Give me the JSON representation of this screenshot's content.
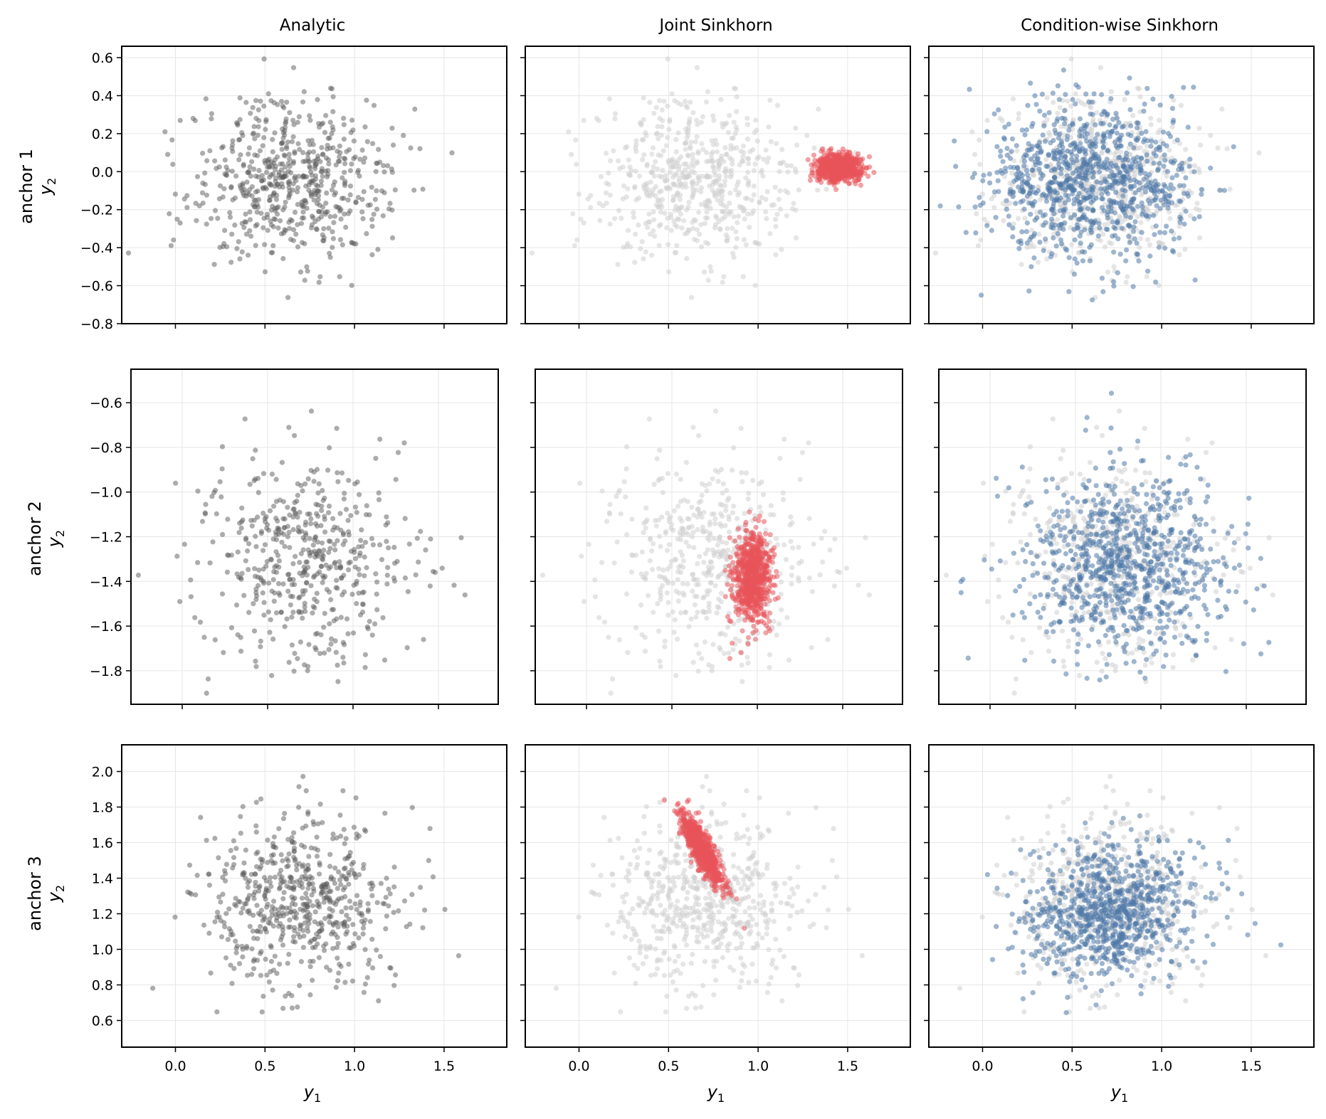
{
  "figure": {
    "columns": [
      "Analytic",
      "Joint Sinkhorn",
      "Condition-wise Sinkhorn"
    ],
    "rows": [
      "anchor 1",
      "anchor 2",
      "anchor 3"
    ],
    "xlabel_main": "y",
    "xlabel_sub": "1",
    "ylabel_main": "y",
    "ylabel_sub": "2"
  },
  "colors": {
    "analytic": "#5a5a5a",
    "reference": "#cfcfcf",
    "joint": "#e8545a",
    "conditionwise": "#4e79a7",
    "grid": "#e6e6e6"
  },
  "chart_data": [
    {
      "type": "scatter",
      "row": "anchor 1",
      "column": "Analytic",
      "ylim": [
        -0.8,
        0.66
      ],
      "yticks": [
        -0.8,
        -0.6,
        -0.4,
        -0.2,
        0.0,
        0.2,
        0.4,
        0.6
      ],
      "xlim": [
        -0.3,
        1.85
      ],
      "xticks": [
        0.0,
        0.5,
        1.0,
        1.5
      ],
      "series": [
        {
          "role": "analytic",
          "n": 600,
          "center": [
            0.65,
            -0.04
          ],
          "spread": [
            0.28,
            0.21
          ],
          "corr": 0
        }
      ]
    },
    {
      "type": "scatter",
      "row": "anchor 1",
      "column": "Joint Sinkhorn",
      "ylim": [
        -0.8,
        0.66
      ],
      "yticks": [
        -0.8,
        -0.6,
        -0.4,
        -0.2,
        0.0,
        0.2,
        0.4,
        0.6
      ],
      "xlim": [
        -0.3,
        1.85
      ],
      "xticks": [
        0.0,
        0.5,
        1.0,
        1.5
      ],
      "series": [
        {
          "role": "reference",
          "n": 600,
          "center": [
            0.65,
            -0.04
          ],
          "spread": [
            0.28,
            0.21
          ],
          "corr": 0
        },
        {
          "role": "joint",
          "n": 700,
          "center": [
            1.45,
            0.02
          ],
          "spread": [
            0.06,
            0.035
          ],
          "corr": 0
        }
      ]
    },
    {
      "type": "scatter",
      "row": "anchor 1",
      "column": "Condition-wise Sinkhorn",
      "ylim": [
        -0.8,
        0.66
      ],
      "yticks": [
        -0.8,
        -0.6,
        -0.4,
        -0.2,
        0.0,
        0.2,
        0.4,
        0.6
      ],
      "xlim": [
        -0.3,
        1.85
      ],
      "xticks": [
        0.0,
        0.5,
        1.0,
        1.5
      ],
      "series": [
        {
          "role": "reference",
          "n": 600,
          "center": [
            0.65,
            -0.04
          ],
          "spread": [
            0.28,
            0.21
          ],
          "corr": 0
        },
        {
          "role": "conditionwise",
          "n": 900,
          "center": [
            0.6,
            -0.05
          ],
          "spread": [
            0.28,
            0.2
          ],
          "corr": 0
        }
      ]
    },
    {
      "type": "scatter",
      "row": "anchor 2",
      "column": "Analytic",
      "ylim": [
        -1.95,
        -0.45
      ],
      "yticks": [
        -1.8,
        -1.6,
        -1.4,
        -1.2,
        -1.0,
        -0.8,
        -0.6
      ],
      "xlim": [
        -0.3,
        1.85
      ],
      "xticks": [
        0.0,
        0.5,
        1.0,
        1.5
      ],
      "series": [
        {
          "role": "analytic",
          "n": 500,
          "center": [
            0.75,
            -1.3
          ],
          "spread": [
            0.3,
            0.23
          ],
          "corr": 0
        }
      ]
    },
    {
      "type": "scatter",
      "row": "anchor 2",
      "column": "Joint Sinkhorn",
      "ylim": [
        -1.95,
        -0.45
      ],
      "yticks": [
        -1.8,
        -1.6,
        -1.4,
        -1.2,
        -1.0,
        -0.8,
        -0.6
      ],
      "xlim": [
        -0.3,
        1.85
      ],
      "xticks": [
        0.0,
        0.5,
        1.0,
        1.5
      ],
      "series": [
        {
          "role": "reference",
          "n": 500,
          "center": [
            0.75,
            -1.3
          ],
          "spread": [
            0.3,
            0.23
          ],
          "corr": 0
        },
        {
          "role": "joint",
          "n": 700,
          "center": [
            0.97,
            -1.38
          ],
          "spread": [
            0.055,
            0.1
          ],
          "corr": 0
        }
      ]
    },
    {
      "type": "scatter",
      "row": "anchor 2",
      "column": "Condition-wise Sinkhorn",
      "ylim": [
        -1.95,
        -0.45
      ],
      "yticks": [
        -1.8,
        -1.6,
        -1.4,
        -1.2,
        -1.0,
        -0.8,
        -0.6
      ],
      "xlim": [
        -0.3,
        1.85
      ],
      "xticks": [
        0.0,
        0.5,
        1.0,
        1.5
      ],
      "series": [
        {
          "role": "reference",
          "n": 500,
          "center": [
            0.75,
            -1.3
          ],
          "spread": [
            0.3,
            0.23
          ],
          "corr": 0
        },
        {
          "role": "conditionwise",
          "n": 850,
          "center": [
            0.82,
            -1.32
          ],
          "spread": [
            0.29,
            0.2
          ],
          "corr": 0
        }
      ]
    },
    {
      "type": "scatter",
      "row": "anchor 3",
      "column": "Analytic",
      "ylim": [
        0.45,
        2.15
      ],
      "yticks": [
        0.6,
        0.8,
        1.0,
        1.2,
        1.4,
        1.6,
        1.8,
        2.0
      ],
      "xlim": [
        -0.3,
        1.85
      ],
      "xticks": [
        0.0,
        0.5,
        1.0,
        1.5
      ],
      "series": [
        {
          "role": "analytic",
          "n": 600,
          "center": [
            0.72,
            1.28
          ],
          "spread": [
            0.27,
            0.23
          ],
          "corr": 0
        }
      ]
    },
    {
      "type": "scatter",
      "row": "anchor 3",
      "column": "Joint Sinkhorn",
      "ylim": [
        0.45,
        2.15
      ],
      "yticks": [
        0.6,
        0.8,
        1.0,
        1.2,
        1.4,
        1.6,
        1.8,
        2.0
      ],
      "xlim": [
        -0.3,
        1.85
      ],
      "xticks": [
        0.0,
        0.5,
        1.0,
        1.5
      ],
      "series": [
        {
          "role": "reference",
          "n": 600,
          "center": [
            0.72,
            1.28
          ],
          "spread": [
            0.27,
            0.23
          ],
          "corr": 0
        },
        {
          "role": "joint",
          "n": 700,
          "center": [
            0.68,
            1.57
          ],
          "spread": [
            0.06,
            0.1
          ],
          "corr": -0.85
        }
      ]
    },
    {
      "type": "scatter",
      "row": "anchor 3",
      "column": "Condition-wise Sinkhorn",
      "ylim": [
        0.45,
        2.15
      ],
      "yticks": [
        0.6,
        0.8,
        1.0,
        1.2,
        1.4,
        1.6,
        1.8,
        2.0
      ],
      "xlim": [
        -0.3,
        1.85
      ],
      "xticks": [
        0.0,
        0.5,
        1.0,
        1.5
      ],
      "series": [
        {
          "role": "reference",
          "n": 600,
          "center": [
            0.72,
            1.28
          ],
          "spread": [
            0.27,
            0.23
          ],
          "corr": 0
        },
        {
          "role": "conditionwise",
          "n": 850,
          "center": [
            0.72,
            1.22
          ],
          "spread": [
            0.24,
            0.19
          ],
          "corr": 0.15
        }
      ]
    }
  ]
}
